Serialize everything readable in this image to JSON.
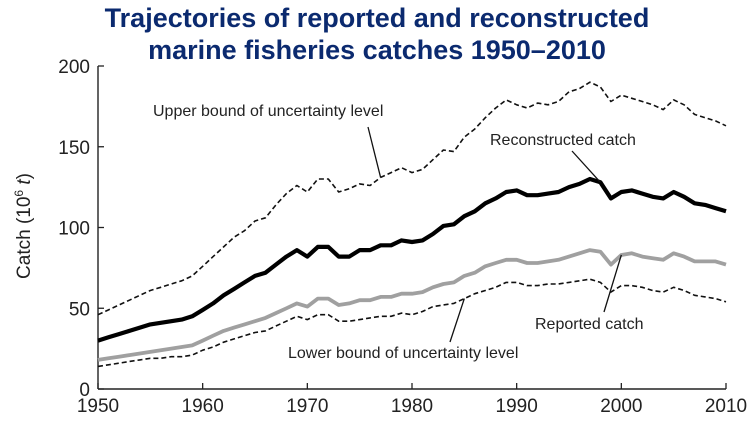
{
  "chart_data": {
    "type": "line",
    "title_line1": "Trajectories of reported and reconstructed",
    "title_line2": "marine fisheries catches 1950–2010",
    "ylabel_main": "Catch (10",
    "ylabel_sup": "6",
    "ylabel_unit": "t",
    "ylabel_close": ")",
    "xlim": [
      1950,
      2010
    ],
    "ylim": [
      0,
      200
    ],
    "xticks": [
      1950,
      1960,
      1970,
      1980,
      1990,
      2000,
      2010
    ],
    "yticks": [
      0,
      50,
      100,
      150,
      200
    ],
    "grid": false,
    "x": [
      1950,
      1951,
      1952,
      1953,
      1954,
      1955,
      1956,
      1957,
      1958,
      1959,
      1960,
      1961,
      1962,
      1963,
      1964,
      1965,
      1966,
      1967,
      1968,
      1969,
      1970,
      1971,
      1972,
      1973,
      1974,
      1975,
      1976,
      1977,
      1978,
      1979,
      1980,
      1981,
      1982,
      1983,
      1984,
      1985,
      1986,
      1987,
      1988,
      1989,
      1990,
      1991,
      1992,
      1993,
      1994,
      1995,
      1996,
      1997,
      1998,
      1999,
      2000,
      2001,
      2002,
      2003,
      2004,
      2005,
      2006,
      2007,
      2008,
      2009,
      2010
    ],
    "series": [
      {
        "key": "upper",
        "values": [
          46,
          49,
          52,
          55,
          58,
          61,
          63,
          65,
          67,
          70,
          76,
          82,
          88,
          94,
          98,
          104,
          106,
          114,
          121,
          126,
          122,
          130,
          130,
          122,
          124,
          127,
          126,
          131,
          134,
          137,
          134,
          136,
          142,
          148,
          147,
          156,
          161,
          168,
          174,
          179,
          176,
          174,
          177,
          176,
          178,
          184,
          186,
          190,
          187,
          178,
          182,
          180,
          178,
          176,
          173,
          179,
          176,
          170,
          168,
          166,
          163
        ],
        "color": "#111111",
        "width": 1.6,
        "dash": "5,3"
      },
      {
        "name": "Reconstructed catch",
        "key": "reconstructed",
        "values": [
          30,
          32,
          34,
          36,
          38,
          40,
          41,
          42,
          43,
          45,
          49,
          53,
          58,
          62,
          66,
          70,
          72,
          77,
          82,
          86,
          82,
          88,
          88,
          82,
          82,
          86,
          86,
          89,
          89,
          92,
          91,
          92,
          96,
          101,
          102,
          107,
          110,
          115,
          118,
          122,
          123,
          120,
          120,
          121,
          122,
          125,
          127,
          130,
          128,
          118,
          122,
          123,
          121,
          119,
          118,
          122,
          119,
          115,
          114,
          112,
          110
        ],
        "color": "#000000",
        "width": 4.2,
        "dash": ""
      },
      {
        "name": "Reported catch",
        "key": "reported",
        "values": [
          18,
          19,
          20,
          21,
          22,
          23,
          24,
          25,
          26,
          27,
          30,
          33,
          36,
          38,
          40,
          42,
          44,
          47,
          50,
          53,
          51,
          56,
          56,
          52,
          53,
          55,
          55,
          57,
          57,
          59,
          59,
          60,
          63,
          65,
          66,
          70,
          72,
          76,
          78,
          80,
          80,
          78,
          78,
          79,
          80,
          82,
          84,
          86,
          85,
          77,
          83,
          84,
          82,
          81,
          80,
          84,
          82,
          79,
          79,
          79,
          77
        ],
        "color": "#a0a0a0",
        "width": 3.8,
        "dash": ""
      },
      {
        "key": "lower",
        "values": [
          14,
          15,
          16,
          17,
          18,
          19,
          19,
          20,
          20,
          21,
          24,
          26,
          29,
          31,
          33,
          35,
          36,
          39,
          42,
          45,
          43,
          46,
          46,
          42,
          42,
          43,
          44,
          45,
          45,
          47,
          46,
          48,
          51,
          52,
          53,
          56,
          59,
          61,
          63,
          66,
          66,
          64,
          64,
          65,
          65,
          66,
          67,
          68,
          66,
          60,
          64,
          64,
          63,
          61,
          60,
          63,
          61,
          58,
          57,
          56,
          54
        ],
        "color": "#111111",
        "width": 1.6,
        "dash": "5,3"
      }
    ],
    "annotations": [
      {
        "text": "Upper bound of uncertainty level",
        "target_key": "upper",
        "target_x": 1977
      },
      {
        "text": "Reconstructed catch",
        "target_key": "reconstructed",
        "target_x": 1998
      },
      {
        "text": "Reported catch",
        "target_key": "reported",
        "target_x": 2000
      },
      {
        "text": "Lower bound of uncertainty level",
        "target_key": "lower",
        "target_x": 1985
      }
    ]
  }
}
